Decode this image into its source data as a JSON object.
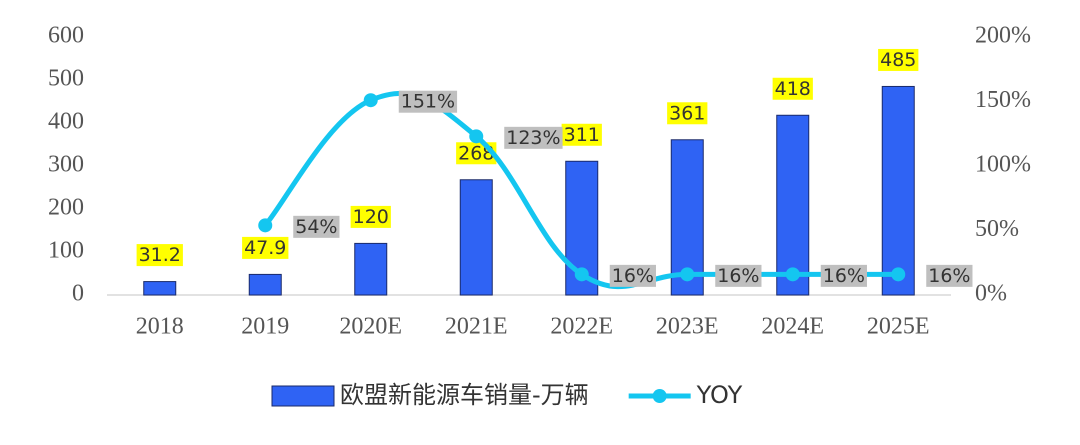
{
  "chart_data": {
    "type": "bar-line",
    "categories": [
      "2018",
      "2019",
      "2020E",
      "2021E",
      "2022E",
      "2023E",
      "2024E",
      "2025E"
    ],
    "series": [
      {
        "name": "欧盟新能源车销量-万辆",
        "type": "bar",
        "color": "#2f63f4",
        "values": [
          31.2,
          47.9,
          120,
          268,
          311,
          361,
          418,
          485
        ]
      },
      {
        "name": "YOY",
        "type": "line",
        "axis": "y2",
        "color": "#14c6f0",
        "values": [
          null,
          54,
          151,
          123,
          16,
          16,
          16,
          16
        ],
        "value_labels": [
          null,
          "54%",
          "151%",
          "123%",
          "16%",
          "16%",
          "16%",
          "16%"
        ]
      }
    ],
    "ylim": [
      0,
      600
    ],
    "yticks": [
      0,
      100,
      200,
      300,
      400,
      500,
      600
    ],
    "y2lim": [
      0,
      200
    ],
    "y2ticks": [
      {
        "value": 0,
        "label": "0%"
      },
      {
        "value": 50,
        "label": "50%"
      },
      {
        "value": 100,
        "label": "100%"
      },
      {
        "value": 150,
        "label": "150%"
      },
      {
        "value": 200,
        "label": "200%"
      }
    ],
    "grid": false,
    "legend": "bottom"
  }
}
